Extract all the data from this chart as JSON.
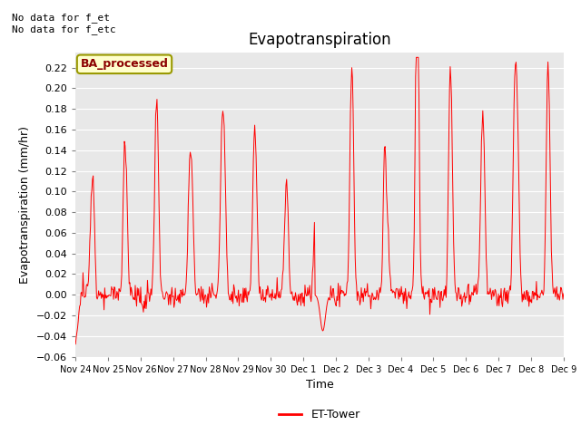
{
  "title": "Evapotranspiration",
  "ylabel": "Evapotranspiration (mm/hr)",
  "xlabel": "Time",
  "annotation_text": "No data for f_et\nNo data for f_etc",
  "legend_label": "ET-Tower",
  "legend_line_color": "#ff0000",
  "box_label": "BA_processed",
  "box_facecolor": "#ffffcc",
  "box_edgecolor": "#999900",
  "line_color": "#ff0000",
  "background_color": "#e8e8e8",
  "ylim": [
    -0.06,
    0.235
  ],
  "yticks": [
    -0.06,
    -0.04,
    -0.02,
    0.0,
    0.02,
    0.04,
    0.06,
    0.08,
    0.1,
    0.12,
    0.14,
    0.16,
    0.18,
    0.2,
    0.22
  ],
  "x_tick_labels": [
    "Nov 24",
    "Nov 25",
    "Nov 26",
    "Nov 27",
    "Nov 28",
    "Nov 29",
    "Nov 30",
    "Dec 1",
    "Dec 2",
    "Dec 3",
    "Dec 4",
    "Dec 5",
    "Dec 6",
    "Dec 7",
    "Dec 8",
    "Dec 9"
  ],
  "num_days": 16,
  "title_fontsize": 12,
  "label_fontsize": 9,
  "tick_fontsize": 8,
  "figwidth": 6.4,
  "figheight": 4.8,
  "dpi": 100
}
